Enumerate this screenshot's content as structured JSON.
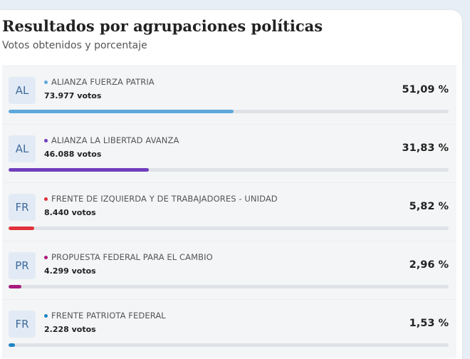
{
  "section": {
    "title": "Resultados por agrupaciones políticas",
    "subtitle": "Votos obtenidos y porcentaje"
  },
  "results": [
    {
      "abbr": "AL",
      "name": "ALIANZA FUERZA PATRIA",
      "votes": "73.977 votos",
      "percent": "51,09 %",
      "share": 51.09,
      "color": "#5ea8dc"
    },
    {
      "abbr": "AL",
      "name": "ALIANZA LA LIBERTAD AVANZA",
      "votes": "46.088 votos",
      "percent": "31,83 %",
      "share": 31.83,
      "color": "#6f3ebc"
    },
    {
      "abbr": "FR",
      "name": "FRENTE DE IZQUIERDA Y DE TRABAJADORES - UNIDAD",
      "votes": "8.440 votos",
      "percent": "5,82 %",
      "share": 5.82,
      "color": "#e0303a"
    },
    {
      "abbr": "PR",
      "name": "PROPUESTA FEDERAL PARA EL CAMBIO",
      "votes": "4.299 votos",
      "percent": "2,96 %",
      "share": 2.96,
      "color": "#a8197d"
    },
    {
      "abbr": "FR",
      "name": "FRENTE PATRIOTA FEDERAL",
      "votes": "2.228 votos",
      "percent": "1,53 %",
      "share": 1.53,
      "color": "#1f84c4"
    }
  ]
}
